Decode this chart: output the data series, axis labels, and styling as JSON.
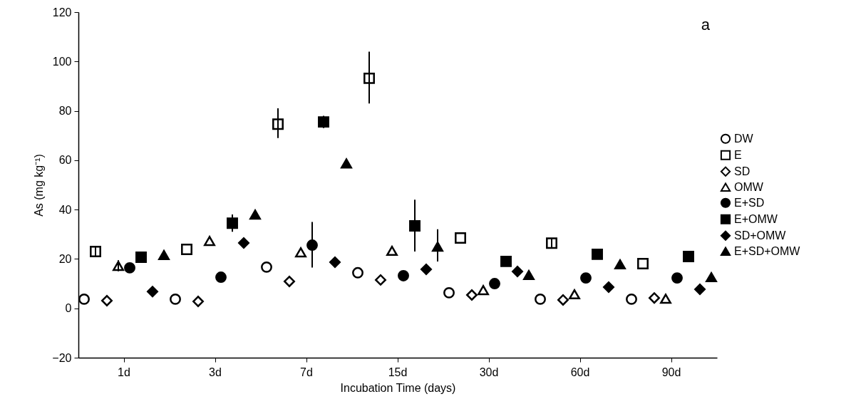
{
  "chart_data": {
    "type": "scatter",
    "xlabel": "Incubation Time (days)",
    "ylabel": "As (mg kg⁻¹)",
    "categories": [
      "1d",
      "3d",
      "7d",
      "15d",
      "30d",
      "60d",
      "90d"
    ],
    "ylim": [
      -20,
      120
    ],
    "yticks": [
      -20,
      0,
      20,
      40,
      60,
      80,
      100,
      120
    ],
    "grid": false,
    "legend": "right",
    "annotations": [
      "a"
    ],
    "series": [
      {
        "name": "DW",
        "color": "#000000",
        "marker": "circle",
        "values": [
          3.7,
          3.7,
          16.7,
          14.4,
          6.3,
          3.7,
          3.7
        ]
      },
      {
        "name": "E",
        "color": "#000000",
        "marker": "square",
        "values": [
          23,
          23.9,
          74.6,
          93.2,
          28.5,
          26.4,
          18.1
        ],
        "errors": [
          [
            21,
            25
          ],
          null,
          [
            69,
            81
          ],
          [
            83,
            104
          ],
          null,
          [
            24.5,
            28.5
          ],
          null
        ]
      },
      {
        "name": "SD",
        "color": "#000000",
        "marker": "diamond",
        "values": [
          3.1,
          2.8,
          10.9,
          11.5,
          5.4,
          3.4,
          4.2
        ]
      },
      {
        "name": "OMW",
        "color": "#000000",
        "marker": "triangle",
        "values": [
          17.2,
          27.3,
          22.7,
          23.3,
          7.4,
          5.7,
          3.9
        ],
        "errors": [
          [
            15,
            19.5
          ],
          null,
          null,
          null,
          null,
          null,
          null
        ]
      },
      {
        "name": "E+SD",
        "color": "#000000",
        "marker": "circle",
        "values": [
          16.4,
          12.6,
          25.6,
          13.2,
          10,
          12.3,
          12.3
        ],
        "errors": [
          null,
          null,
          [
            16.5,
            35
          ],
          null,
          null,
          null,
          null
        ]
      },
      {
        "name": "E+OMW",
        "color": "#000000",
        "marker": "square",
        "values": [
          20.7,
          34.5,
          75.5,
          33.4,
          19,
          21.9,
          21
        ],
        "errors": [
          null,
          [
            31,
            38
          ],
          [
            73,
            78
          ],
          [
            23,
            44
          ],
          null,
          null,
          null
        ]
      },
      {
        "name": "SD+OMW",
        "color": "#000000",
        "marker": "diamond",
        "values": [
          6.8,
          26.5,
          18.7,
          15.8,
          14.9,
          8.6,
          7.7
        ]
      },
      {
        "name": "E+SD+OMW",
        "color": "#000000",
        "marker": "triangle",
        "values": [
          21.6,
          38,
          58.7,
          25,
          13.5,
          17.8,
          12.6
        ],
        "errors": [
          null,
          null,
          null,
          [
            19,
            32
          ],
          null,
          null,
          null
        ]
      }
    ]
  }
}
